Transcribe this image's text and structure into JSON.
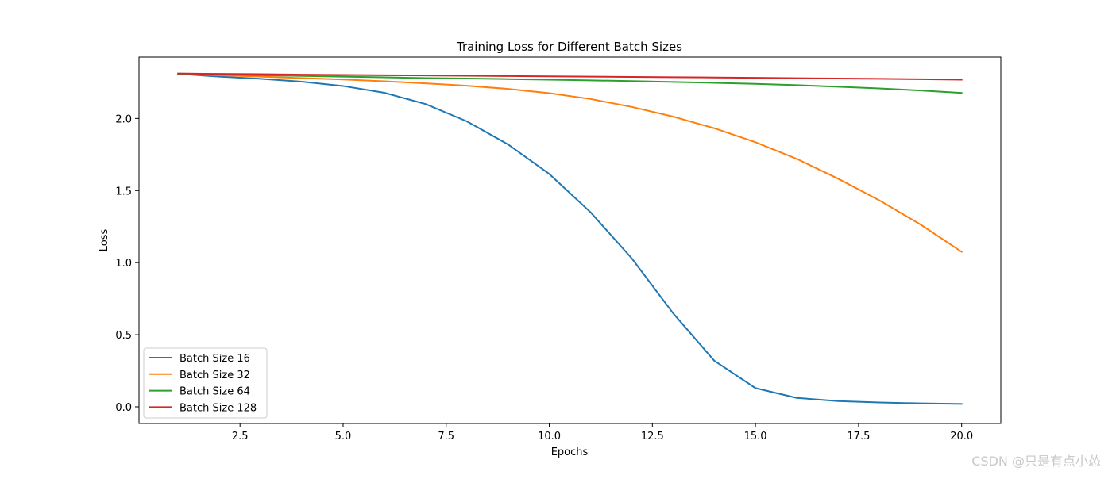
{
  "watermark": "CSDN @只是有点小怂",
  "chart_data": {
    "type": "line",
    "title": "Training Loss for Different Batch Sizes",
    "xlabel": "Epochs",
    "ylabel": "Loss",
    "xlim": [
      0.05,
      20.95
    ],
    "ylim": [
      -0.1155,
      2.4255
    ],
    "xticks": [
      2.5,
      5.0,
      7.5,
      10.0,
      12.5,
      15.0,
      17.5,
      20.0
    ],
    "xtick_labels": [
      "2.5",
      "5.0",
      "7.5",
      "10.0",
      "12.5",
      "15.0",
      "17.5",
      "20.0"
    ],
    "yticks": [
      0.0,
      0.5,
      1.0,
      1.5,
      2.0
    ],
    "ytick_labels": [
      "0.0",
      "0.5",
      "1.0",
      "1.5",
      "2.0"
    ],
    "grid": false,
    "legend_position": "lower-left",
    "x": [
      1,
      2,
      3,
      4,
      5,
      6,
      7,
      8,
      9,
      10,
      11,
      12,
      13,
      14,
      15,
      16,
      17,
      18,
      19,
      20
    ],
    "series": [
      {
        "name": "Batch Size 16",
        "color": "#1f77b4",
        "values": [
          2.31,
          2.29,
          2.275,
          2.255,
          2.225,
          2.178,
          2.1,
          1.98,
          1.82,
          1.615,
          1.35,
          1.03,
          0.65,
          0.32,
          0.13,
          0.062,
          0.04,
          0.03,
          0.024,
          0.02
        ]
      },
      {
        "name": "Batch Size 32",
        "color": "#ff7f0e",
        "values": [
          2.31,
          2.3,
          2.29,
          2.28,
          2.27,
          2.258,
          2.243,
          2.227,
          2.205,
          2.175,
          2.135,
          2.08,
          2.013,
          1.932,
          1.835,
          1.72,
          1.583,
          1.433,
          1.265,
          1.075
        ]
      },
      {
        "name": "Batch Size 64",
        "color": "#2ca02c",
        "values": [
          2.31,
          2.305,
          2.3,
          2.295,
          2.29,
          2.285,
          2.28,
          2.277,
          2.273,
          2.269,
          2.264,
          2.259,
          2.253,
          2.247,
          2.24,
          2.231,
          2.22,
          2.208,
          2.194,
          2.177
        ]
      },
      {
        "name": "Batch Size 128",
        "color": "#d62728",
        "values": [
          2.312,
          2.309,
          2.307,
          2.304,
          2.302,
          2.3,
          2.298,
          2.296,
          2.294,
          2.292,
          2.29,
          2.288,
          2.286,
          2.284,
          2.282,
          2.279,
          2.277,
          2.275,
          2.272,
          2.269
        ]
      }
    ]
  }
}
